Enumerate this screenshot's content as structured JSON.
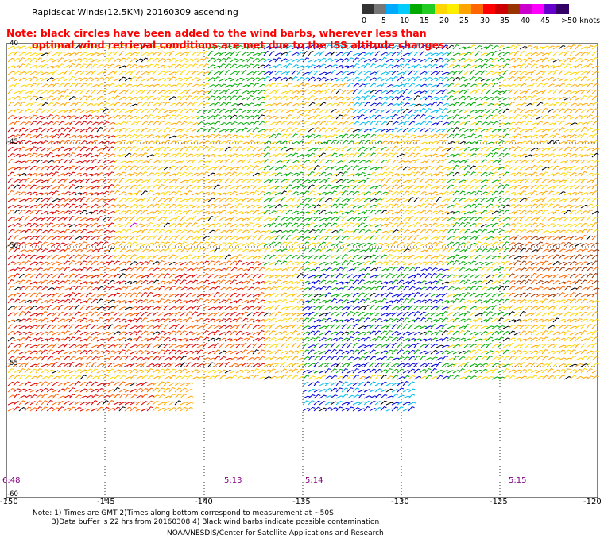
{
  "header": {
    "title": "Rapidscat Winds(12.5KM) 20160309 ascending",
    "note_line1": "Note: black circles have been added to the wind barbs, wherever less than",
    "note_line2": "optimal wind retrieval conditions are met due to the ISS altitude changes."
  },
  "legend": {
    "colors": [
      "#333333",
      "#777777",
      "#00aaff",
      "#00ccff",
      "#00aa00",
      "#22cc22",
      "#ffd700",
      "#ffee00",
      "#ffa500",
      "#ff6600",
      "#ff0000",
      "#cc0000",
      "#993300",
      "#cc00cc",
      "#ff00ff",
      "#6600cc",
      "#330066"
    ],
    "labels": [
      "0",
      "5",
      "10",
      "15",
      "20",
      "25",
      "30",
      "35",
      "40",
      "45",
      ">50 knots"
    ]
  },
  "map": {
    "lat_labels": [
      "-40",
      "-45",
      "-50",
      "-55",
      "-60"
    ],
    "lon_labels": [
      "-150",
      "-145",
      "-140",
      "-135",
      "-130",
      "-125",
      "-120"
    ],
    "time_labels": [
      "6:48",
      "5:13",
      "5:14",
      "5:15"
    ]
  },
  "footer": {
    "line1": "Note: 1) Times are GMT 2)Times along bottom correspond to measurement at ~50S",
    "line2": "3)Data buffer is 22 hrs from 20160308 4) Black wind barbs indicate possible contamination",
    "line3": "NOAA/NESDIS/Center for Satellite Applications and Research"
  }
}
